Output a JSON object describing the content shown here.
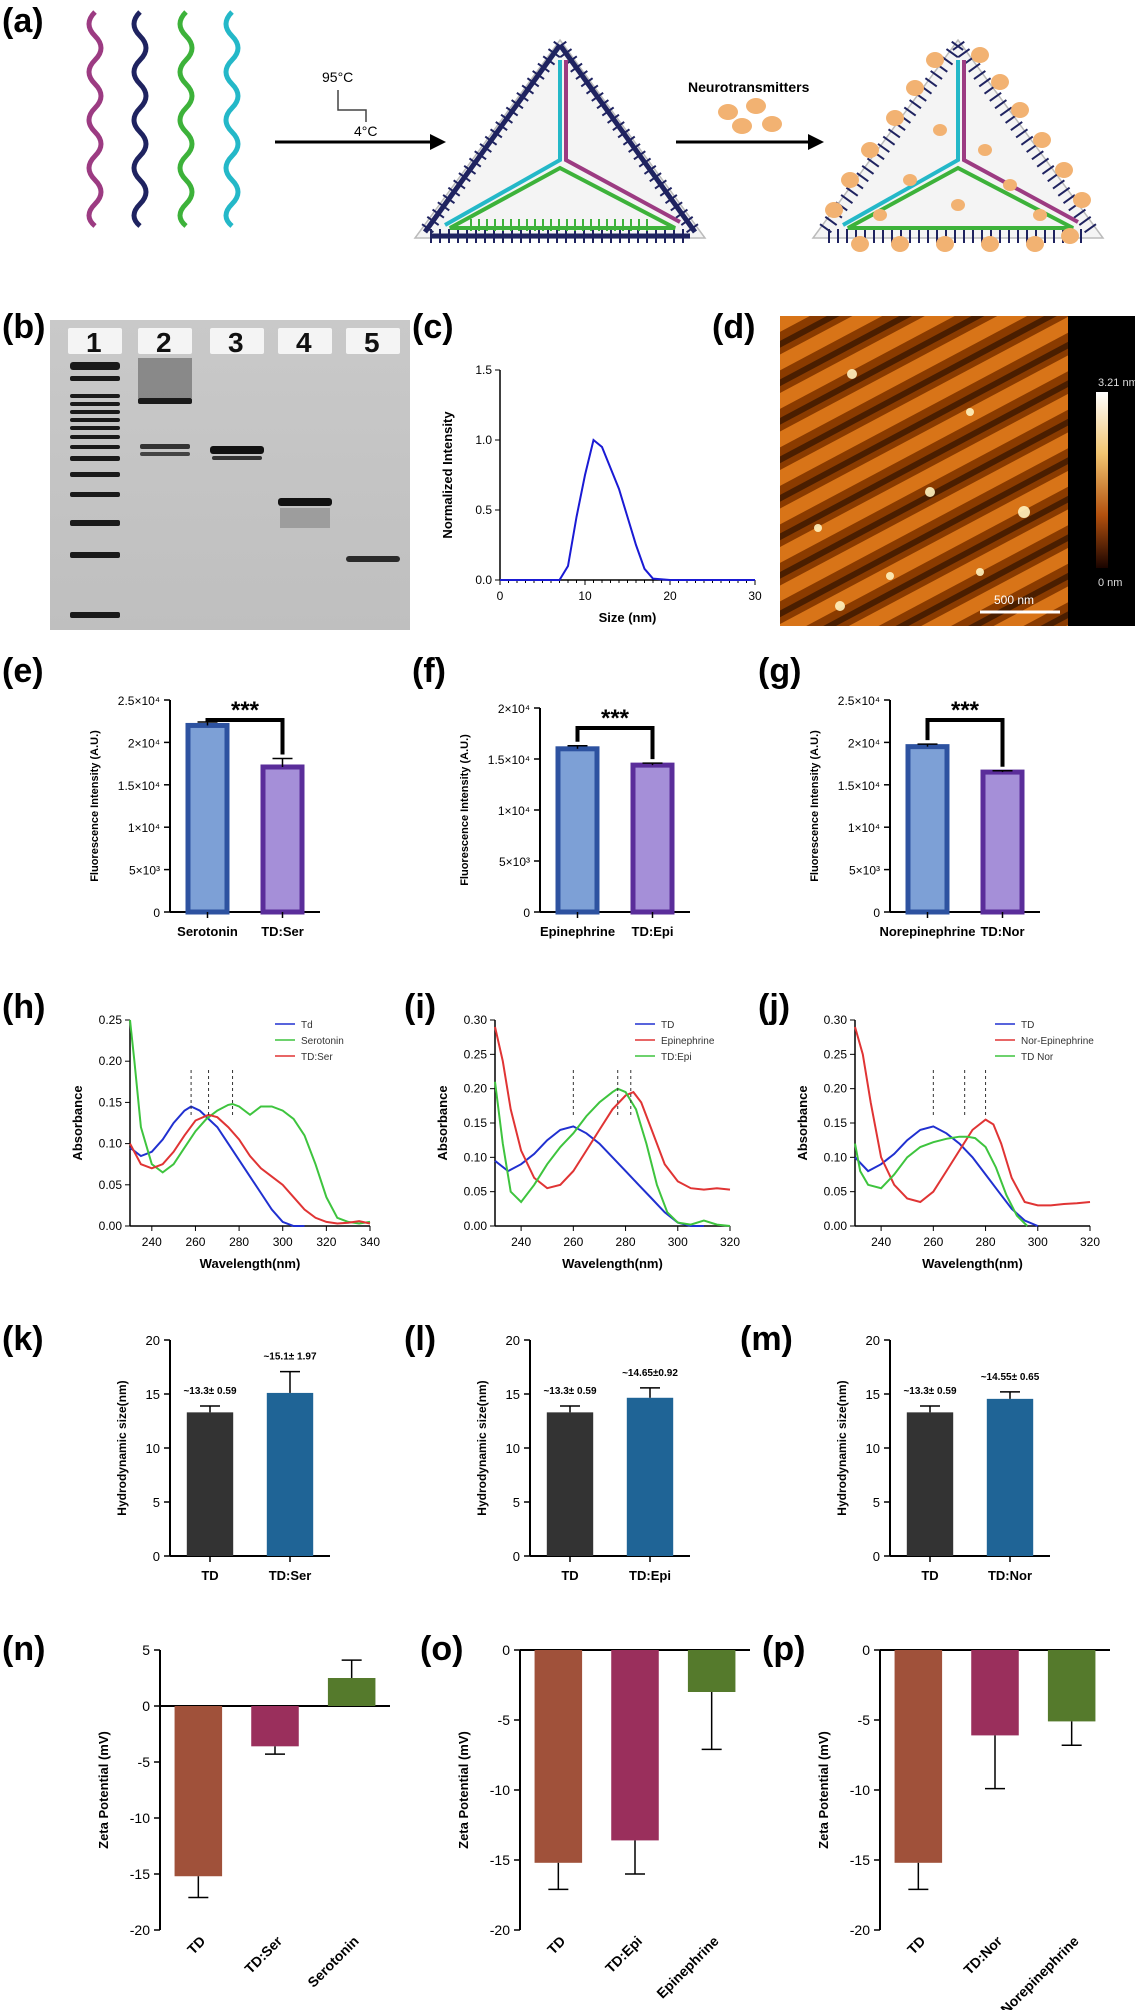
{
  "panel_labels": [
    "(a)",
    "(b)",
    "(c)",
    "(d)",
    "(e)",
    "(f)",
    "(g)",
    "(h)",
    "(i)",
    "(j)",
    "(k)",
    "(l)",
    "(m)",
    "(n)",
    "(o)",
    "(p)"
  ],
  "schematic": {
    "temp_high": "95°C",
    "temp_low": "4°C",
    "reagent_label": "Neurotransmitters",
    "strand_colors": [
      "#9c3b82",
      "#1f2360",
      "#3db23a",
      "#24b8c8"
    ]
  },
  "gel": {
    "lanes": [
      "1",
      "2",
      "3",
      "4",
      "5"
    ]
  },
  "afm": {
    "scale_bar": "500 nm",
    "colorbar_max": "3.21 nm",
    "colorbar_min": "0 nm"
  },
  "chart_data": [
    {
      "panel": "c",
      "type": "line",
      "xlabel": "Size (nm)",
      "ylabel": "Normalized Intensity",
      "xlim": [
        0,
        30
      ],
      "ylim": [
        0,
        1.5
      ],
      "xticks": [
        "0",
        "10",
        "20",
        "30"
      ],
      "yticks": [
        "0.0",
        "0.5",
        "1.0",
        "1.5"
      ],
      "x": [
        0,
        7,
        8,
        9,
        10,
        11,
        12,
        13,
        14,
        15,
        16,
        17,
        18,
        20,
        30
      ],
      "y": [
        0,
        0,
        0.1,
        0.45,
        0.75,
        1.0,
        0.95,
        0.8,
        0.65,
        0.45,
        0.25,
        0.08,
        0.01,
        0,
        0
      ],
      "color": "#1a1ad4"
    },
    {
      "panel": "e",
      "type": "bar",
      "ylabel": "Fluorescence Intensity (A.U.)",
      "ylim": [
        0,
        25000
      ],
      "yticks": [
        "0",
        "5×10³",
        "1×10⁴",
        "1.5×10⁴",
        "2×10⁴",
        "2.5×10⁴"
      ],
      "categories": [
        "Serotonin",
        "TD:Ser"
      ],
      "values": [
        22000,
        17100
      ],
      "errors": [
        400,
        1000
      ],
      "fills": [
        "#7da0d6",
        "#a58fd8"
      ],
      "edges": [
        "#2d52a0",
        "#5a2d9a"
      ],
      "significance": "***"
    },
    {
      "panel": "f",
      "type": "bar",
      "ylabel": "Fluorescence Intensity (A.U.)",
      "ylim": [
        0,
        20000
      ],
      "yticks": [
        "0",
        "5×10³",
        "1×10⁴",
        "1.5×10⁴",
        "2×10⁴"
      ],
      "categories": [
        "Epinephrine",
        "TD:Epi"
      ],
      "values": [
        16000,
        14400
      ],
      "errors": [
        300,
        200
      ],
      "fills": [
        "#7da0d6",
        "#a58fd8"
      ],
      "edges": [
        "#2d52a0",
        "#5a2d9a"
      ],
      "significance": "***"
    },
    {
      "panel": "g",
      "type": "bar",
      "ylabel": "Fluorescence Intensity (A.U.)",
      "ylim": [
        0,
        25000
      ],
      "yticks": [
        "0",
        "5×10³",
        "1×10⁴",
        "1.5×10⁴",
        "2×10⁴",
        "2.5×10⁴"
      ],
      "categories": [
        "Norepinephrine",
        "TD:Nor"
      ],
      "values": [
        19500,
        16500
      ],
      "errors": [
        300,
        150
      ],
      "fills": [
        "#7da0d6",
        "#a58fd8"
      ],
      "edges": [
        "#2d52a0",
        "#5a2d9a"
      ],
      "significance": "***"
    },
    {
      "panel": "h",
      "type": "line",
      "xlabel": "Wavelength(nm)",
      "ylabel": "Absorbance",
      "xlim": [
        230,
        340
      ],
      "ylim": [
        0,
        0.25
      ],
      "xticks": [
        "240",
        "260",
        "280",
        "300",
        "320",
        "340"
      ],
      "yticks": [
        "0.00",
        "0.05",
        "0.10",
        "0.15",
        "0.20",
        "0.25"
      ],
      "peaks": [
        258,
        266,
        277
      ],
      "series": [
        {
          "name": "Td",
          "color": "#2030d0",
          "x": [
            230,
            235,
            240,
            245,
            250,
            255,
            258,
            262,
            266,
            270,
            275,
            280,
            285,
            290,
            295,
            300,
            305,
            310
          ],
          "y": [
            0.095,
            0.085,
            0.09,
            0.105,
            0.125,
            0.14,
            0.145,
            0.14,
            0.13,
            0.12,
            0.1,
            0.08,
            0.06,
            0.04,
            0.02,
            0.005,
            0,
            0
          ]
        },
        {
          "name": "Serotonin",
          "color": "#3ec43e",
          "x": [
            230,
            232,
            235,
            240,
            245,
            250,
            255,
            260,
            265,
            270,
            275,
            277,
            280,
            285,
            290,
            295,
            300,
            305,
            310,
            315,
            320,
            325,
            330,
            335,
            340
          ],
          "y": [
            0.25,
            0.2,
            0.12,
            0.075,
            0.065,
            0.075,
            0.095,
            0.115,
            0.13,
            0.14,
            0.147,
            0.148,
            0.145,
            0.135,
            0.145,
            0.145,
            0.14,
            0.13,
            0.11,
            0.075,
            0.035,
            0.01,
            0.005,
            0.003,
            0.005
          ]
        },
        {
          "name": "TD:Ser",
          "color": "#e03434",
          "x": [
            230,
            235,
            240,
            245,
            250,
            255,
            260,
            266,
            270,
            275,
            280,
            285,
            290,
            295,
            300,
            305,
            310,
            315,
            320,
            325,
            330,
            335,
            340
          ],
          "y": [
            0.1,
            0.075,
            0.07,
            0.075,
            0.09,
            0.11,
            0.128,
            0.135,
            0.132,
            0.12,
            0.105,
            0.085,
            0.07,
            0.06,
            0.05,
            0.035,
            0.02,
            0.01,
            0.005,
            0.003,
            0.004,
            0.006,
            0.003
          ]
        }
      ]
    },
    {
      "panel": "i",
      "type": "line",
      "xlabel": "Wavelength(nm)",
      "ylabel": "Absorbance",
      "xlim": [
        230,
        320
      ],
      "ylim": [
        0,
        0.3
      ],
      "xticks": [
        "240",
        "260",
        "280",
        "300",
        "320"
      ],
      "yticks": [
        "0.00",
        "0.05",
        "0.10",
        "0.15",
        "0.20",
        "0.25",
        "0.30"
      ],
      "peaks": [
        260,
        277,
        282
      ],
      "series": [
        {
          "name": "TD",
          "color": "#2030d0",
          "x": [
            230,
            235,
            240,
            245,
            250,
            255,
            260,
            265,
            270,
            275,
            280,
            285,
            290,
            295,
            300,
            305,
            310
          ],
          "y": [
            0.095,
            0.08,
            0.09,
            0.105,
            0.125,
            0.14,
            0.145,
            0.135,
            0.12,
            0.1,
            0.08,
            0.06,
            0.04,
            0.02,
            0.005,
            0,
            0
          ]
        },
        {
          "name": "Epinephrine",
          "color": "#e03434",
          "x": [
            230,
            233,
            236,
            240,
            245,
            250,
            255,
            260,
            265,
            270,
            275,
            280,
            283,
            286,
            290,
            295,
            300,
            305,
            310,
            315,
            320
          ],
          "y": [
            0.29,
            0.24,
            0.17,
            0.11,
            0.07,
            0.055,
            0.06,
            0.08,
            0.11,
            0.14,
            0.17,
            0.19,
            0.195,
            0.18,
            0.14,
            0.09,
            0.065,
            0.055,
            0.053,
            0.055,
            0.053
          ]
        },
        {
          "name": "TD:Epi",
          "color": "#3ec43e",
          "x": [
            230,
            233,
            236,
            240,
            245,
            250,
            255,
            260,
            265,
            270,
            275,
            277,
            280,
            284,
            288,
            292,
            296,
            300,
            305,
            310,
            315,
            320
          ],
          "y": [
            0.21,
            0.12,
            0.05,
            0.035,
            0.06,
            0.09,
            0.115,
            0.135,
            0.16,
            0.18,
            0.195,
            0.2,
            0.195,
            0.17,
            0.12,
            0.06,
            0.02,
            0.005,
            0.002,
            0.008,
            0.002,
            0
          ]
        }
      ]
    },
    {
      "panel": "j",
      "type": "line",
      "xlabel": "Wavelength(nm)",
      "ylabel": "Absorbance",
      "xlim": [
        230,
        320
      ],
      "ylim": [
        0,
        0.3
      ],
      "xticks": [
        "240",
        "260",
        "280",
        "300",
        "320"
      ],
      "yticks": [
        "0.00",
        "0.05",
        "0.10",
        "0.15",
        "0.20",
        "0.25",
        "0.30"
      ],
      "peaks": [
        260,
        272,
        280
      ],
      "series": [
        {
          "name": "TD",
          "color": "#2030d0",
          "x": [
            230,
            235,
            240,
            245,
            250,
            255,
            260,
            265,
            270,
            275,
            280,
            285,
            290,
            295,
            300
          ],
          "y": [
            0.1,
            0.08,
            0.09,
            0.105,
            0.125,
            0.14,
            0.145,
            0.135,
            0.12,
            0.1,
            0.075,
            0.05,
            0.025,
            0.008,
            0
          ]
        },
        {
          "name": "Nor-Epinephrine",
          "color": "#e03434",
          "x": [
            230,
            233,
            236,
            240,
            245,
            250,
            255,
            260,
            265,
            270,
            275,
            280,
            283,
            286,
            290,
            295,
            300,
            305,
            310,
            315,
            320
          ],
          "y": [
            0.29,
            0.25,
            0.18,
            0.1,
            0.06,
            0.04,
            0.035,
            0.05,
            0.08,
            0.11,
            0.14,
            0.155,
            0.148,
            0.12,
            0.07,
            0.035,
            0.03,
            0.03,
            0.032,
            0.033,
            0.035
          ]
        },
        {
          "name": "TD Nor",
          "color": "#3ec43e",
          "x": [
            230,
            232,
            235,
            240,
            245,
            250,
            255,
            260,
            265,
            270,
            273,
            276,
            280,
            284,
            288,
            292,
            296
          ],
          "y": [
            0.12,
            0.08,
            0.06,
            0.055,
            0.075,
            0.1,
            0.115,
            0.122,
            0.127,
            0.13,
            0.13,
            0.128,
            0.115,
            0.085,
            0.045,
            0.015,
            0
          ]
        }
      ]
    },
    {
      "panel": "k",
      "type": "bar",
      "ylabel": "Hydrodynamic size(nm)",
      "ylim": [
        0,
        20
      ],
      "yticks": [
        "0",
        "5",
        "10",
        "15",
        "20"
      ],
      "categories": [
        "TD",
        "TD:Ser"
      ],
      "values": [
        13.3,
        15.1
      ],
      "errors": [
        0.59,
        1.97
      ],
      "fills": [
        "#333333",
        "#1f6496"
      ],
      "value_labels": [
        "~13.3± 0.59",
        "~15.1± 1.97"
      ]
    },
    {
      "panel": "l",
      "type": "bar",
      "ylabel": "Hydrodynamic size(nm)",
      "ylim": [
        0,
        20
      ],
      "yticks": [
        "0",
        "5",
        "10",
        "15",
        "20"
      ],
      "categories": [
        "TD",
        "TD:Epi"
      ],
      "values": [
        13.3,
        14.65
      ],
      "errors": [
        0.59,
        0.92
      ],
      "fills": [
        "#333333",
        "#1f6496"
      ],
      "value_labels": [
        "~13.3± 0.59",
        "~14.65±0.92"
      ]
    },
    {
      "panel": "m",
      "type": "bar",
      "ylabel": "Hydrodynamic size(nm)",
      "ylim": [
        0,
        20
      ],
      "yticks": [
        "0",
        "5",
        "10",
        "15",
        "20"
      ],
      "categories": [
        "TD",
        "TD:Nor"
      ],
      "values": [
        13.3,
        14.55
      ],
      "errors": [
        0.59,
        0.65
      ],
      "fills": [
        "#333333",
        "#1f6496"
      ],
      "value_labels": [
        "~13.3± 0.59",
        "~14.55± 0.65"
      ]
    },
    {
      "panel": "n",
      "type": "bar",
      "ylabel": "Zeta Potential (mV)",
      "ylim": [
        -20,
        5
      ],
      "yticks": [
        "5",
        "0",
        "-5",
        "-10",
        "-15",
        "-20"
      ],
      "ytick_values": [
        5,
        0,
        -5,
        -10,
        -15,
        -20
      ],
      "categories": [
        "TD",
        "TD:Ser",
        "Serotonin"
      ],
      "values": [
        -15.2,
        -3.6,
        2.5
      ],
      "errors": [
        1.9,
        0.7,
        1.6
      ],
      "fills": [
        "#a0513a",
        "#9a2f5c",
        "#557a2c"
      ]
    },
    {
      "panel": "o",
      "type": "bar",
      "ylabel": "Zeta Potential (mV)",
      "ylim": [
        -20,
        0
      ],
      "yticks": [
        "0",
        "-5",
        "-10",
        "-15",
        "-20"
      ],
      "ytick_values": [
        0,
        -5,
        -10,
        -15,
        -20
      ],
      "categories": [
        "TD",
        "TD:Epi",
        "Epinephrine"
      ],
      "values": [
        -15.2,
        -13.6,
        -3.0
      ],
      "errors": [
        1.9,
        2.4,
        4.1
      ],
      "fills": [
        "#a0513a",
        "#9a2f5c",
        "#557a2c"
      ]
    },
    {
      "panel": "p",
      "type": "bar",
      "ylabel": "Zeta Potential (mV)",
      "ylim": [
        -20,
        0
      ],
      "yticks": [
        "0",
        "-5",
        "-10",
        "-15",
        "-20"
      ],
      "ytick_values": [
        0,
        -5,
        -10,
        -15,
        -20
      ],
      "categories": [
        "TD",
        "TD:Nor",
        "Norepinephrine"
      ],
      "values": [
        -15.2,
        -6.1,
        -5.1
      ],
      "errors": [
        1.9,
        3.8,
        1.7
      ],
      "fills": [
        "#a0513a",
        "#9a2f5c",
        "#557a2c"
      ]
    }
  ]
}
